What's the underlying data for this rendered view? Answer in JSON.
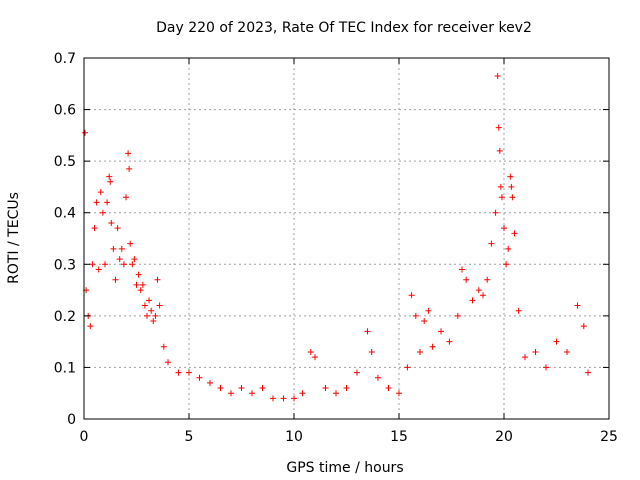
{
  "chart_data": {
    "type": "scatter",
    "title": "Day 220 of 2023, Rate Of TEC Index for receiver kev2",
    "xlabel": "GPS time / hours",
    "ylabel": "ROTI / TECUs",
    "xlim": [
      0,
      25
    ],
    "ylim": [
      0,
      0.7
    ],
    "xticks": [
      0,
      5,
      10,
      15,
      20,
      25
    ],
    "yticks": [
      0,
      0.1,
      0.2,
      0.3,
      0.4,
      0.5,
      0.6,
      0.7
    ],
    "grid": true,
    "marker": "+",
    "color": "#ff0000",
    "series": [
      {
        "points": [
          [
            0.05,
            0.555
          ],
          [
            0.1,
            0.25
          ],
          [
            0.2,
            0.2
          ],
          [
            0.3,
            0.18
          ],
          [
            0.4,
            0.3
          ],
          [
            0.5,
            0.37
          ],
          [
            0.6,
            0.42
          ],
          [
            0.7,
            0.29
          ],
          [
            0.8,
            0.44
          ],
          [
            0.9,
            0.4
          ],
          [
            1.0,
            0.3
          ],
          [
            1.1,
            0.42
          ],
          [
            1.2,
            0.47
          ],
          [
            1.25,
            0.46
          ],
          [
            1.3,
            0.38
          ],
          [
            1.4,
            0.33
          ],
          [
            1.5,
            0.27
          ],
          [
            1.6,
            0.37
          ],
          [
            1.7,
            0.31
          ],
          [
            1.8,
            0.33
          ],
          [
            1.9,
            0.3
          ],
          [
            2.0,
            0.43
          ],
          [
            2.1,
            0.515
          ],
          [
            2.15,
            0.485
          ],
          [
            2.2,
            0.34
          ],
          [
            2.3,
            0.3
          ],
          [
            2.4,
            0.31
          ],
          [
            2.5,
            0.26
          ],
          [
            2.6,
            0.28
          ],
          [
            2.7,
            0.25
          ],
          [
            2.8,
            0.26
          ],
          [
            2.9,
            0.22
          ],
          [
            3.0,
            0.2
          ],
          [
            3.1,
            0.23
          ],
          [
            3.2,
            0.21
          ],
          [
            3.3,
            0.19
          ],
          [
            3.4,
            0.2
          ],
          [
            3.5,
            0.27
          ],
          [
            3.6,
            0.22
          ],
          [
            3.8,
            0.14
          ],
          [
            4.0,
            0.11
          ],
          [
            4.5,
            0.09
          ],
          [
            5.0,
            0.09
          ],
          [
            5.5,
            0.08
          ],
          [
            6.0,
            0.07
          ],
          [
            6.5,
            0.06
          ],
          [
            7.0,
            0.05
          ],
          [
            7.5,
            0.06
          ],
          [
            8.0,
            0.05
          ],
          [
            8.5,
            0.06
          ],
          [
            9.0,
            0.04
          ],
          [
            9.5,
            0.04
          ],
          [
            10.0,
            0.04
          ],
          [
            10.4,
            0.05
          ],
          [
            10.8,
            0.13
          ],
          [
            11.0,
            0.12
          ],
          [
            11.5,
            0.06
          ],
          [
            12.0,
            0.05
          ],
          [
            12.5,
            0.06
          ],
          [
            13.0,
            0.09
          ],
          [
            13.5,
            0.17
          ],
          [
            13.7,
            0.13
          ],
          [
            14.0,
            0.08
          ],
          [
            14.5,
            0.06
          ],
          [
            15.0,
            0.05
          ],
          [
            15.4,
            0.1
          ],
          [
            15.6,
            0.24
          ],
          [
            15.8,
            0.2
          ],
          [
            16.0,
            0.13
          ],
          [
            16.2,
            0.19
          ],
          [
            16.4,
            0.21
          ],
          [
            16.6,
            0.14
          ],
          [
            17.0,
            0.17
          ],
          [
            17.4,
            0.15
          ],
          [
            17.8,
            0.2
          ],
          [
            18.0,
            0.29
          ],
          [
            18.2,
            0.27
          ],
          [
            18.5,
            0.23
          ],
          [
            18.8,
            0.25
          ],
          [
            19.0,
            0.24
          ],
          [
            19.2,
            0.27
          ],
          [
            19.4,
            0.34
          ],
          [
            19.6,
            0.4
          ],
          [
            19.7,
            0.665
          ],
          [
            19.75,
            0.565
          ],
          [
            19.8,
            0.52
          ],
          [
            19.85,
            0.45
          ],
          [
            19.9,
            0.43
          ],
          [
            20.0,
            0.37
          ],
          [
            20.1,
            0.3
          ],
          [
            20.2,
            0.33
          ],
          [
            20.3,
            0.47
          ],
          [
            20.35,
            0.45
          ],
          [
            20.4,
            0.43
          ],
          [
            20.5,
            0.36
          ],
          [
            20.7,
            0.21
          ],
          [
            21.0,
            0.12
          ],
          [
            21.5,
            0.13
          ],
          [
            22.0,
            0.1
          ],
          [
            22.5,
            0.15
          ],
          [
            23.0,
            0.13
          ],
          [
            23.5,
            0.22
          ],
          [
            23.8,
            0.18
          ],
          [
            24.0,
            0.09
          ]
        ]
      }
    ]
  }
}
